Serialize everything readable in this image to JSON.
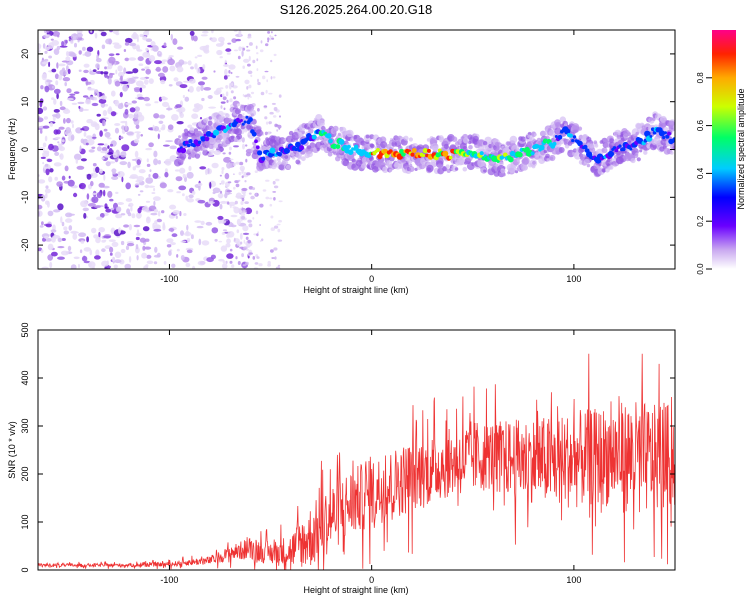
{
  "title": "S126.2025.264.00.20.G18",
  "chart_data": [
    {
      "type": "heatmap",
      "name": "spectrogram",
      "xlabel": "Height of straight line (km)",
      "ylabel": "Frequency (Hz)",
      "xlim": [
        -165,
        150
      ],
      "ylim": [
        -25,
        25
      ],
      "xticks": [
        -100,
        0,
        100
      ],
      "yticks": [
        -20,
        -10,
        0,
        10,
        20
      ],
      "ridge": {
        "x": [
          -95,
          -90,
          -85,
          -80,
          -75,
          -70,
          -65,
          -60,
          -55,
          -50,
          -45,
          -40,
          -35,
          -30,
          -25,
          -20,
          -15,
          -10,
          -5,
          0,
          5,
          10,
          15,
          20,
          25,
          30,
          35,
          40,
          45,
          50,
          55,
          60,
          65,
          70,
          75,
          80,
          85,
          90,
          95,
          100,
          105,
          110,
          115,
          120,
          125,
          130,
          135,
          140,
          145,
          150
        ],
        "y": [
          0,
          1,
          2,
          3,
          4,
          5,
          6,
          6,
          -1.5,
          -1.0,
          -0.5,
          0,
          1,
          2.5,
          4,
          1.5,
          1,
          0,
          -0.5,
          -0.5,
          -1,
          -1,
          -1,
          -1,
          -1,
          -1,
          -1,
          -1,
          -1,
          -0.5,
          -1,
          -1.5,
          -2,
          -1.5,
          -0.5,
          0,
          1,
          1.5,
          4,
          2,
          0,
          -2,
          -1.5,
          0,
          0.5,
          1,
          2,
          4,
          3,
          2
        ]
      },
      "colorbar": {
        "label": "Normalized spectral amplitude",
        "range": [
          0,
          1
        ],
        "ticks": [
          "0.0",
          "0.2",
          "0.4",
          "0.6",
          "0.8"
        ]
      }
    },
    {
      "type": "line",
      "name": "snr",
      "xlabel": "Height of straight line (km)",
      "ylabel": "SNR (10 * v/v)",
      "xlim": [
        -165,
        150
      ],
      "ylim": [
        0,
        500
      ],
      "xticks": [
        -100,
        0,
        100
      ],
      "yticks": [
        0,
        100,
        200,
        300,
        400,
        500
      ],
      "color": "#ee3333",
      "envelope": {
        "x": [
          -165,
          -120,
          -100,
          -80,
          -70,
          -60,
          -50,
          -40,
          -30,
          -20,
          -10,
          0,
          10,
          20,
          30,
          40,
          50,
          60,
          70,
          80,
          90,
          100,
          110,
          120,
          130,
          140,
          150
        ],
        "mean": [
          10,
          10,
          12,
          20,
          35,
          45,
          35,
          40,
          70,
          110,
          140,
          160,
          180,
          195,
          210,
          225,
          235,
          240,
          230,
          230,
          225,
          230,
          235,
          240,
          235,
          230,
          240
        ],
        "spread": [
          6,
          6,
          8,
          15,
          25,
          40,
          40,
          60,
          110,
          120,
          120,
          120,
          120,
          130,
          120,
          120,
          130,
          120,
          140,
          150,
          160,
          170,
          170,
          180,
          200,
          190,
          180
        ]
      }
    }
  ]
}
